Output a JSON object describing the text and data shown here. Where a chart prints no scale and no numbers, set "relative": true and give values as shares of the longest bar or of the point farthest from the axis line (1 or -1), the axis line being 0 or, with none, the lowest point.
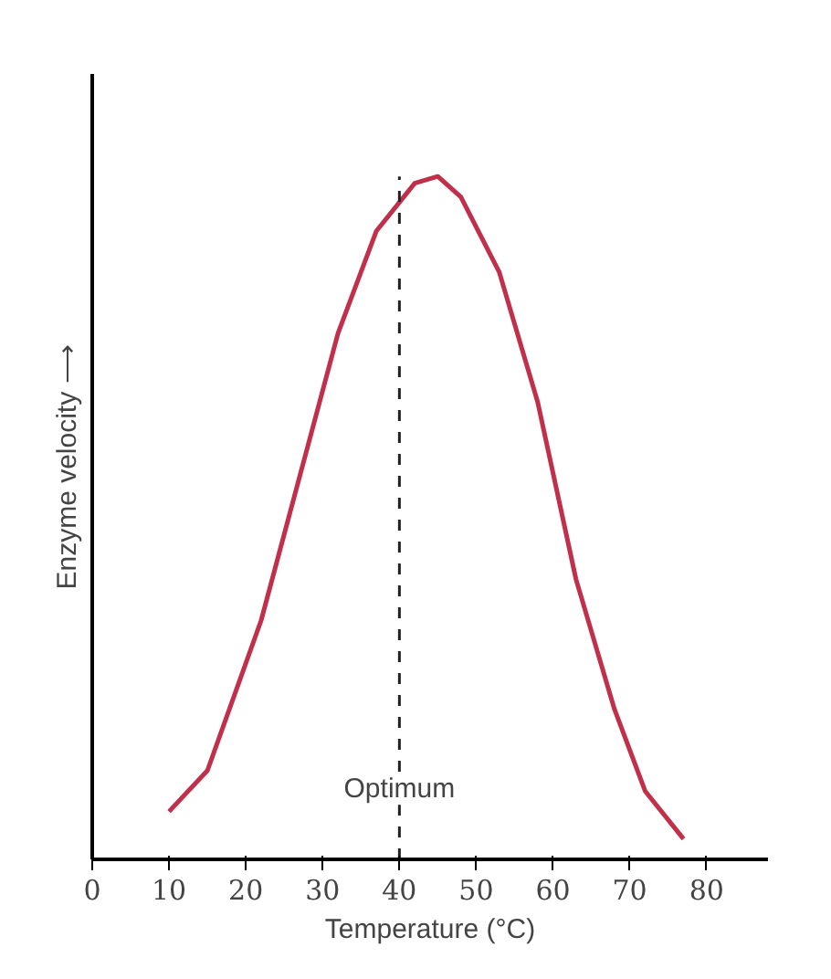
{
  "chart_data": {
    "type": "line",
    "relative": true,
    "xlabel": "Temperature (°C)",
    "ylabel": "Enzyme velocity ⟶",
    "xlim": [
      0,
      88
    ],
    "xticks": [
      0,
      10,
      20,
      30,
      40,
      50,
      60,
      70,
      80
    ],
    "tick_labels": "x",
    "grid": false,
    "marker": "none",
    "line_style": "solid",
    "series": [
      {
        "color": "#c0304a",
        "x": [
          10,
          15,
          22,
          27,
          32,
          37,
          42,
          45,
          48,
          53,
          58,
          63,
          68,
          72,
          77
        ],
        "values": [
          0.07,
          0.13,
          0.35,
          0.56,
          0.77,
          0.92,
          0.99,
          1,
          0.97,
          0.86,
          0.67,
          0.41,
          0.22,
          0.1,
          0.03
        ]
      }
    ],
    "ref_lines": [
      {
        "axis": "x",
        "value": 40,
        "label": "Optimum",
        "line_style": "dashed",
        "color": "#222222"
      }
    ]
  }
}
